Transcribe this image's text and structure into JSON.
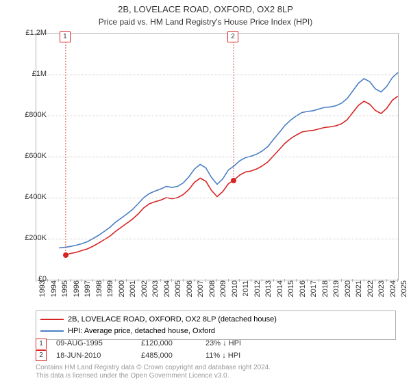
{
  "title": "2B, LOVELACE ROAD, OXFORD, OX2 8LP",
  "subtitle": "Price paid vs. HM Land Registry's House Price Index (HPI)",
  "chart": {
    "type": "line",
    "background_color": "#ffffff",
    "grid_color": "#c8c8c8",
    "border_color": "#b0b0b0",
    "ylim": [
      0,
      1200000
    ],
    "ytick_step": 200000,
    "y_ticks": [
      {
        "v": 0,
        "label": "£0"
      },
      {
        "v": 200000,
        "label": "£200K"
      },
      {
        "v": 400000,
        "label": "£400K"
      },
      {
        "v": 600000,
        "label": "£600K"
      },
      {
        "v": 800000,
        "label": "£800K"
      },
      {
        "v": 1000000,
        "label": "£1M"
      },
      {
        "v": 1200000,
        "label": "£1.2M"
      }
    ],
    "xlim": [
      1993,
      2025
    ],
    "x_ticks": [
      1993,
      1994,
      1995,
      1996,
      1997,
      1998,
      1999,
      2000,
      2001,
      2002,
      2003,
      2004,
      2005,
      2006,
      2007,
      2008,
      2009,
      2010,
      2011,
      2012,
      2013,
      2014,
      2015,
      2016,
      2017,
      2018,
      2019,
      2020,
      2021,
      2022,
      2023,
      2024,
      2025
    ],
    "title_fontsize": 13,
    "label_fontsize": 11,
    "line_width": 1.6,
    "series": [
      {
        "name": "2B, LOVELACE ROAD, OXFORD, OX2 8LP (detached house)",
        "color": "#d62424",
        "data": [
          [
            1995.6,
            120000
          ],
          [
            1996,
            128000
          ],
          [
            1996.5,
            133000
          ],
          [
            1997,
            142000
          ],
          [
            1997.5,
            150000
          ],
          [
            1998,
            163000
          ],
          [
            1998.5,
            178000
          ],
          [
            1999,
            195000
          ],
          [
            1999.5,
            212000
          ],
          [
            2000,
            235000
          ],
          [
            2000.5,
            255000
          ],
          [
            2001,
            275000
          ],
          [
            2001.5,
            295000
          ],
          [
            2002,
            320000
          ],
          [
            2002.5,
            350000
          ],
          [
            2003,
            370000
          ],
          [
            2003.5,
            380000
          ],
          [
            2004,
            388000
          ],
          [
            2004.5,
            400000
          ],
          [
            2005,
            395000
          ],
          [
            2005.5,
            400000
          ],
          [
            2006,
            415000
          ],
          [
            2006.5,
            440000
          ],
          [
            2007,
            475000
          ],
          [
            2007.5,
            495000
          ],
          [
            2008,
            480000
          ],
          [
            2008.5,
            435000
          ],
          [
            2009,
            405000
          ],
          [
            2009.5,
            430000
          ],
          [
            2010,
            468000
          ],
          [
            2010.46,
            485000
          ],
          [
            2011,
            510000
          ],
          [
            2011.5,
            525000
          ],
          [
            2012,
            530000
          ],
          [
            2012.5,
            540000
          ],
          [
            2013,
            555000
          ],
          [
            2013.5,
            575000
          ],
          [
            2014,
            605000
          ],
          [
            2014.5,
            635000
          ],
          [
            2015,
            665000
          ],
          [
            2015.5,
            688000
          ],
          [
            2016,
            705000
          ],
          [
            2016.5,
            720000
          ],
          [
            2017,
            725000
          ],
          [
            2017.5,
            728000
          ],
          [
            2018,
            735000
          ],
          [
            2018.5,
            742000
          ],
          [
            2019,
            745000
          ],
          [
            2019.5,
            750000
          ],
          [
            2020,
            760000
          ],
          [
            2020.5,
            780000
          ],
          [
            2021,
            815000
          ],
          [
            2021.5,
            850000
          ],
          [
            2022,
            870000
          ],
          [
            2022.5,
            855000
          ],
          [
            2023,
            825000
          ],
          [
            2023.5,
            810000
          ],
          [
            2024,
            835000
          ],
          [
            2024.5,
            875000
          ],
          [
            2025,
            895000
          ]
        ]
      },
      {
        "name": "HPI: Average price, detached house, Oxford",
        "color": "#4a7fc4",
        "data": [
          [
            1995,
            155000
          ],
          [
            1995.5,
            158000
          ],
          [
            1996,
            162000
          ],
          [
            1996.5,
            168000
          ],
          [
            1997,
            175000
          ],
          [
            1997.5,
            185000
          ],
          [
            1998,
            200000
          ],
          [
            1998.5,
            216000
          ],
          [
            1999,
            235000
          ],
          [
            1999.5,
            255000
          ],
          [
            2000,
            280000
          ],
          [
            2000.5,
            300000
          ],
          [
            2001,
            320000
          ],
          [
            2001.5,
            342000
          ],
          [
            2002,
            370000
          ],
          [
            2002.5,
            400000
          ],
          [
            2003,
            420000
          ],
          [
            2003.5,
            432000
          ],
          [
            2004,
            442000
          ],
          [
            2004.5,
            455000
          ],
          [
            2005,
            450000
          ],
          [
            2005.5,
            455000
          ],
          [
            2006,
            472000
          ],
          [
            2006.5,
            502000
          ],
          [
            2007,
            540000
          ],
          [
            2007.5,
            562000
          ],
          [
            2008,
            545000
          ],
          [
            2008.5,
            498000
          ],
          [
            2009,
            465000
          ],
          [
            2009.5,
            492000
          ],
          [
            2010,
            535000
          ],
          [
            2010.5,
            555000
          ],
          [
            2011,
            580000
          ],
          [
            2011.5,
            595000
          ],
          [
            2012,
            602000
          ],
          [
            2012.5,
            612000
          ],
          [
            2013,
            628000
          ],
          [
            2013.5,
            650000
          ],
          [
            2014,
            685000
          ],
          [
            2014.5,
            718000
          ],
          [
            2015,
            752000
          ],
          [
            2015.5,
            778000
          ],
          [
            2016,
            798000
          ],
          [
            2016.5,
            815000
          ],
          [
            2017,
            820000
          ],
          [
            2017.5,
            824000
          ],
          [
            2018,
            832000
          ],
          [
            2018.5,
            840000
          ],
          [
            2019,
            842000
          ],
          [
            2019.5,
            848000
          ],
          [
            2020,
            860000
          ],
          [
            2020.5,
            883000
          ],
          [
            2021,
            920000
          ],
          [
            2021.5,
            958000
          ],
          [
            2022,
            980000
          ],
          [
            2022.5,
            965000
          ],
          [
            2023,
            930000
          ],
          [
            2023.5,
            915000
          ],
          [
            2024,
            942000
          ],
          [
            2024.5,
            985000
          ],
          [
            2025,
            1010000
          ]
        ]
      }
    ],
    "markers": [
      {
        "n": "1",
        "x": 1995.6,
        "y": 120000,
        "color": "#d62424"
      },
      {
        "n": "2",
        "x": 2010.46,
        "y": 485000,
        "color": "#d62424"
      }
    ]
  },
  "legend": {
    "items": [
      {
        "color": "#d62424",
        "label": "2B, LOVELACE ROAD, OXFORD, OX2 8LP (detached house)"
      },
      {
        "color": "#4a7fc4",
        "label": "HPI: Average price, detached house, Oxford"
      }
    ]
  },
  "transactions": [
    {
      "n": "1",
      "color": "#d62424",
      "date": "09-AUG-1995",
      "price": "£120,000",
      "pct": "23% ↓ HPI"
    },
    {
      "n": "2",
      "color": "#d62424",
      "date": "18-JUN-2010",
      "price": "£485,000",
      "pct": "11% ↓ HPI"
    }
  ],
  "footer_line1": "Contains HM Land Registry data © Crown copyright and database right 2024.",
  "footer_line2": "This data is licensed under the Open Government Licence v3.0."
}
